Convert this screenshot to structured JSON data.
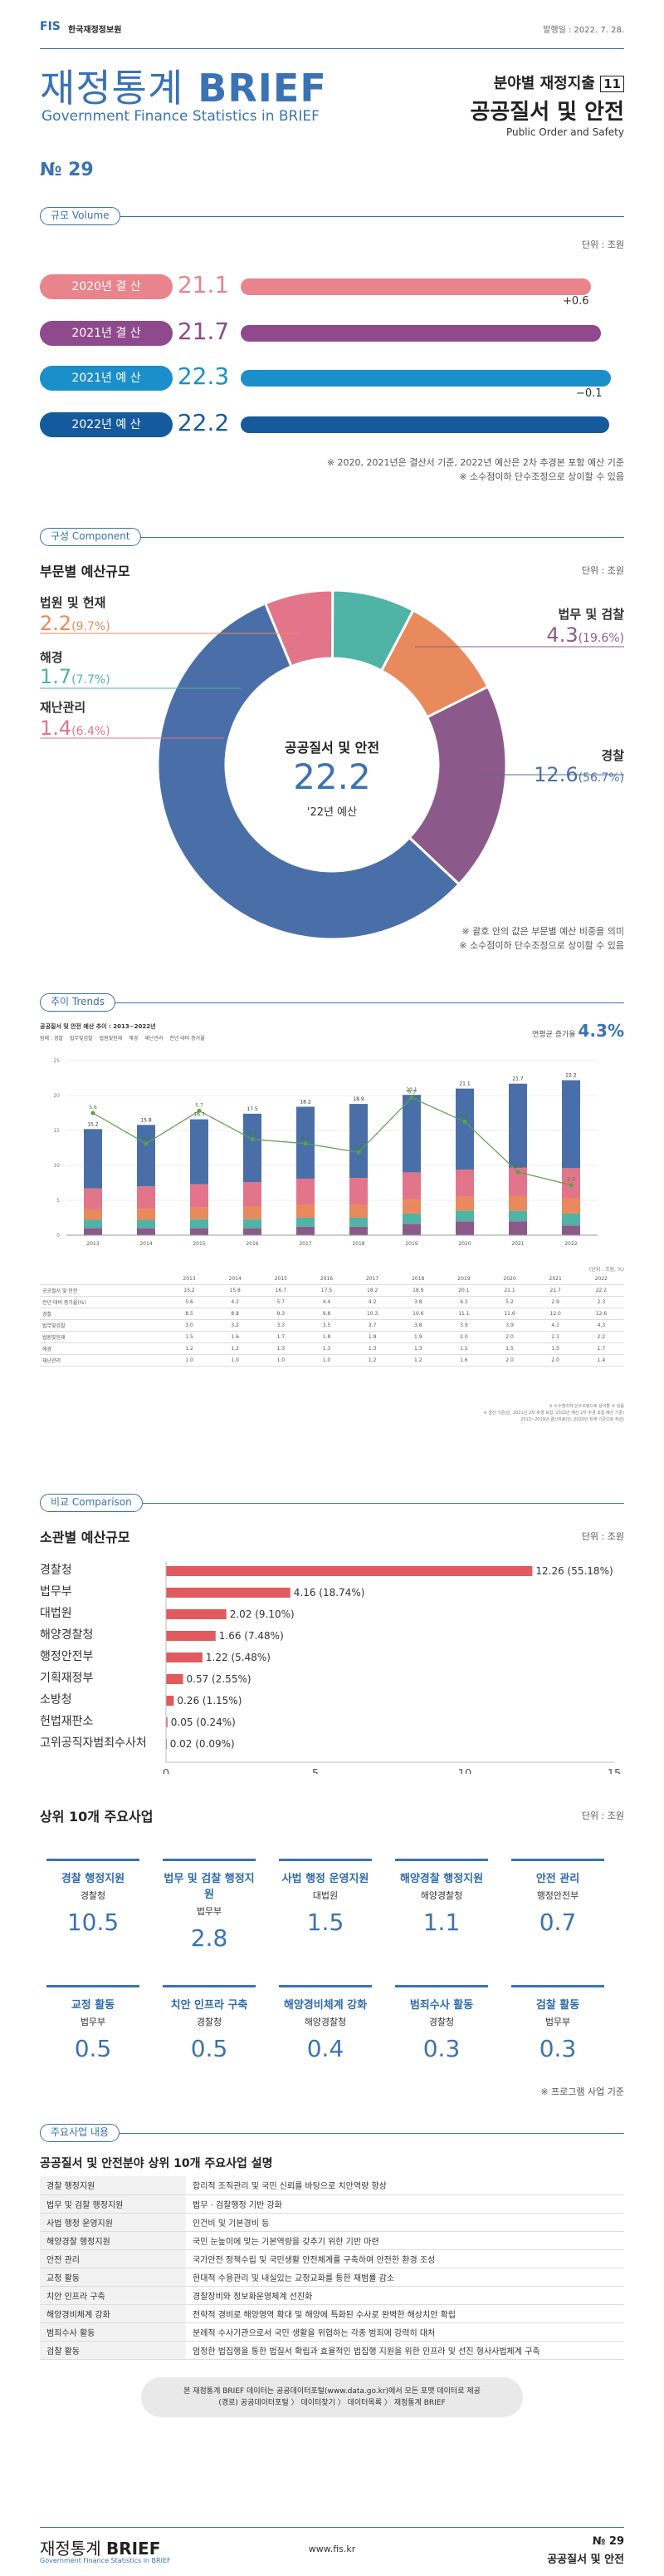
{
  "header": {
    "org": "한국재정정보원",
    "date": "발행일 : 2022. 7. 28.",
    "brand_kr": "재정통계",
    "brand_en": "BRIEF",
    "brand_sub": "Government Finance Statistics in BRIEF",
    "series": "분야별 재정지출",
    "series_no": "11",
    "topic": "공공질서 및 안전",
    "topic_en": "Public Order and Safety",
    "issue": "№ 29"
  },
  "volume": {
    "tag": "규모 Volume",
    "unit": "단위 : 조원",
    "rows": [
      {
        "label": "2020년 결 산",
        "value": 21.1,
        "value_text": "21.1",
        "color": "#e9848c"
      },
      {
        "label": "2021년 결 산",
        "value": 21.7,
        "value_text": "21.7",
        "color": "#8e4a8c"
      },
      {
        "label": "2021년 예 산",
        "value": 22.3,
        "value_text": "22.3",
        "color": "#1b8fca"
      },
      {
        "label": "2022년 예 산",
        "value": 22.2,
        "value_text": "22.2",
        "color": "#155a9d"
      }
    ],
    "diff1": "+0.6",
    "diff2": "−0.1",
    "notes": [
      "※ 2020, 2021년은 결산서 기준, 2022년 예산은 2차 추경본 포함 예산 기준",
      "※ 소수점이하 단수조정으로 상이할 수 있음"
    ]
  },
  "component": {
    "tag": "구성 Component",
    "title": "부문별 예산규모",
    "unit": "단위 : 조원",
    "center_title": "공공질서 및 안전",
    "center_value": "22.2",
    "center_sub": "'22년 예산",
    "slices": [
      {
        "name": "경찰",
        "value": 12.6,
        "pct": "(56.7%)",
        "color": "#4a6fa8"
      },
      {
        "name": "재난관리",
        "value": 1.4,
        "pct": "(6.4%)",
        "color": "#e2758a"
      },
      {
        "name": "해경",
        "value": 1.7,
        "pct": "(7.7%)",
        "color": "#4fb3a6"
      },
      {
        "name": "법원 및 헌재",
        "value": 2.2,
        "pct": "(9.7%)",
        "color": "#e98a5c"
      },
      {
        "name": "법무 및 검찰",
        "value": 4.3,
        "pct": "(19.6%)",
        "color": "#8c5a8a"
      }
    ],
    "notes": [
      "※ 괄호 안의 값은 부문별 예산 비중을 의미",
      "※ 소수점이하 단수조정으로 상이할 수 있음"
    ]
  },
  "trends": {
    "tag": "추이 Trends",
    "chart_title": "공공질서 및 안전 예산 추이 : 2013~2022년",
    "growth_label": "연평균 증가율",
    "growth_value": "4.3%",
    "legend": [
      "경찰",
      "법무및검찰",
      "법원및헌재",
      "해경",
      "재난관리",
      "전년 대비 증가율"
    ],
    "years": [
      "2013",
      "2014",
      "2015",
      "2016",
      "2017",
      "2018",
      "2019",
      "2020",
      "2021",
      "2022"
    ],
    "totals": [
      "15.2",
      "15.8",
      "16.7",
      "17.5",
      "18.2",
      "18.9",
      "20.1",
      "21.1",
      "21.7",
      "22.2"
    ],
    "growth": [
      "5.6",
      "4.2",
      "5.7",
      "4.4",
      "4.2",
      "3.8",
      "6.3",
      "5.2",
      "2.9",
      "2.3"
    ],
    "table_rows": [
      {
        "name": "공공질서 및 안전",
        "vals": [
          "15.2",
          "15.8",
          "16.7",
          "17.5",
          "18.2",
          "18.9",
          "20.1",
          "21.1",
          "21.7",
          "22.2"
        ]
      },
      {
        "name": "전년 대비 증가율(%)",
        "vals": [
          "5.6",
          "4.2",
          "5.7",
          "4.4",
          "4.2",
          "3.8",
          "6.3",
          "5.2",
          "2.9",
          "2.3"
        ]
      },
      {
        "name": "경찰",
        "vals": [
          "8.5",
          "8.8",
          "9.3",
          "9.8",
          "10.3",
          "10.6",
          "11.1",
          "11.6",
          "12.0",
          "12.6"
        ]
      },
      {
        "name": "법무및검찰",
        "vals": [
          "3.0",
          "3.2",
          "3.3",
          "3.5",
          "3.7",
          "3.8",
          "3.9",
          "3.9",
          "4.1",
          "4.3"
        ]
      },
      {
        "name": "법원및헌재",
        "vals": [
          "1.5",
          "1.6",
          "1.7",
          "1.8",
          "1.9",
          "1.9",
          "2.0",
          "2.0",
          "2.1",
          "2.2"
        ]
      },
      {
        "name": "해경",
        "vals": [
          "1.2",
          "1.2",
          "1.3",
          "1.3",
          "1.3",
          "1.3",
          "1.5",
          "1.5",
          "1.5",
          "1.7"
        ]
      },
      {
        "name": "재난관리",
        "vals": [
          "1.0",
          "1.0",
          "1.0",
          "1.0",
          "1.2",
          "1.2",
          "1.6",
          "2.0",
          "2.0",
          "1.4"
        ]
      }
    ],
    "unit_small": "(단위 : 조원, %)",
    "notes_small": [
      "※ 소수점이하 단수조정으로 상이할 수 있음",
      "※ 결산 기준(단, 2021년 2차 추경 포함, 2022년 예산 2차 추경 포함 예산 기준)",
      "2013~2019년 결산자료(단, 2020년 회계 기준으로 작성)"
    ]
  },
  "comparison": {
    "tag": "비교 Comparison",
    "title": "소관별 예산규모",
    "unit": "단위 : 조원",
    "bars": [
      {
        "name": "경찰청",
        "value": 12.26,
        "label": "12.26 (55.18%)"
      },
      {
        "name": "법무부",
        "value": 4.16,
        "label": "4.16 (18.74%)"
      },
      {
        "name": "대법원",
        "value": 2.02,
        "label": "2.02 (9.10%)"
      },
      {
        "name": "해양경찰청",
        "value": 1.66,
        "label": "1.66 (7.48%)"
      },
      {
        "name": "행정안전부",
        "value": 1.22,
        "label": "1.22 (5.48%)"
      },
      {
        "name": "기획재정부",
        "value": 0.57,
        "label": "0.57 (2.55%)"
      },
      {
        "name": "소방청",
        "value": 0.26,
        "label": "0.26 (1.15%)"
      },
      {
        "name": "헌법재판소",
        "value": 0.05,
        "label": "0.05 (0.24%)"
      },
      {
        "name": "고위공직자범죄수사처",
        "value": 0.02,
        "label": "0.02 (0.09%)"
      }
    ],
    "ticks": [
      "0",
      "5",
      "10",
      "15"
    ],
    "xmax": 15
  },
  "top10": {
    "title": "상위 10개 주요사업",
    "unit": "단위 : 조원",
    "items": [
      {
        "name": "경찰 행정지원",
        "ministry": "경찰청",
        "value": "10.5"
      },
      {
        "name": "법무 및 검찰 행정지원",
        "ministry": "법무부",
        "value": "2.8"
      },
      {
        "name": "사법 행정 운영지원",
        "ministry": "대법원",
        "value": "1.5"
      },
      {
        "name": "해양경찰 행정지원",
        "ministry": "해양경찰청",
        "value": "1.1"
      },
      {
        "name": "안전 관리",
        "ministry": "행정안전부",
        "value": "0.7"
      },
      {
        "name": "교정 활동",
        "ministry": "법무부",
        "value": "0.5"
      },
      {
        "name": "치안 인프라 구축",
        "ministry": "경찰청",
        "value": "0.5"
      },
      {
        "name": "해양경비체계 강화",
        "ministry": "해양경찰청",
        "value": "0.4"
      },
      {
        "name": "범죄수사 활동",
        "ministry": "경찰청",
        "value": "0.3"
      },
      {
        "name": "검찰 활동",
        "ministry": "법무부",
        "value": "0.3"
      }
    ],
    "note": "※ 프로그램 사업 기준"
  },
  "desc": {
    "tag": "주요사업 내용",
    "title": "공공질서 및 안전분야 상위 10개 주요사업 설명",
    "rows": [
      {
        "k": "경찰 행정지원",
        "v": "합리적 조직관리 및 국민 신뢰를 바탕으로 치안역량 향상"
      },
      {
        "k": "법무 및 검찰 행정지원",
        "v": "법무 · 검찰행정 기반 강화"
      },
      {
        "k": "사법 행정 운영지원",
        "v": "인건비 및 기본경비 등"
      },
      {
        "k": "해양경찰 행정지원",
        "v": "국민 눈높이에 맞는 기본역량을 갖추기 위한 기반 마련"
      },
      {
        "k": "안전 관리",
        "v": "국가안전 정책수립 및 국민생활 안전체계를 구축하여 안전한 환경 조성"
      },
      {
        "k": "교정 활동",
        "v": "현대적 수용관리 및 내실있는 교정교화를 통한 재범률 감소"
      },
      {
        "k": "치안 인프라 구축",
        "v": "경찰장비와 정보화운영체계 선진화"
      },
      {
        "k": "해양경비체계 강화",
        "v": "전략적 경비로 해양영역 확대 및 해양에 특화된 수사로 완벽한 해상치안 확립"
      },
      {
        "k": "범죄수사 활동",
        "v": "분례적 수사기관으로서 국민 생활을 위협하는 각종 범죄에 강력히 대처"
      },
      {
        "k": "검찰 활동",
        "v": "엄정한 법집행을 통한 법질서 확립과 효율적인 법집행 지원을 위한 인프라 및 선진 형사사법체계 구축"
      }
    ]
  },
  "footer_info": {
    "line1": "본 재정통계 BRIEF 데이터는 공공데이터포털(www.data.go.kr)에서 모든 포맷 데이터로 제공",
    "line2": "(경로) 공공데이터포털 〉 데이터찾기 〉 데이터목록 〉 재정통계 BRIEF"
  },
  "footer": {
    "brand_kr": "재정통계",
    "brand_en": "BRIEF",
    "brand_sub": "Government Finance Statistics in BRIEF",
    "url": "www.fis.kr",
    "issue": "№ 29",
    "topic": "공공질서 및 안전"
  }
}
